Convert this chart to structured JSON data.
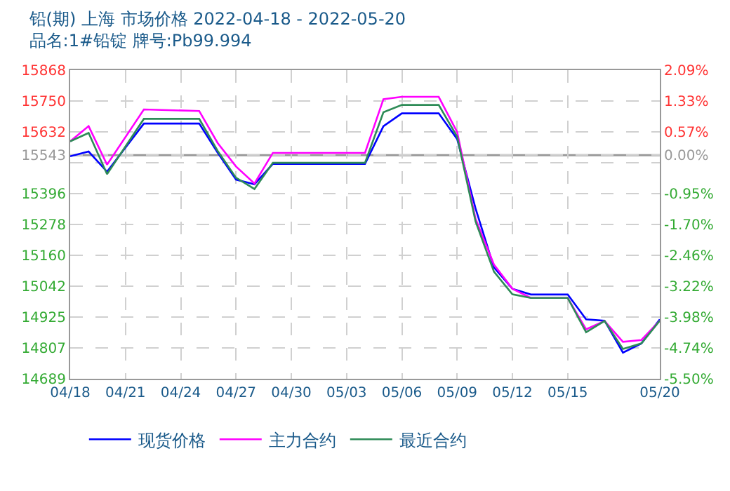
{
  "chart_data": {
    "type": "line",
    "title": "铅(期) 上海 市场价格 2022-04-18 - 2022-05-20",
    "subtitle": "品名:1#铅锭 牌号:Pb99.994",
    "x": [
      "2022-04-18",
      "2022-04-19",
      "2022-04-20",
      "2022-04-22",
      "2022-04-25",
      "2022-04-26",
      "2022-04-27",
      "2022-04-28",
      "2022-04-29",
      "2022-05-04",
      "2022-05-05",
      "2022-05-06",
      "2022-05-08",
      "2022-05-09",
      "2022-05-10",
      "2022-05-11",
      "2022-05-12",
      "2022-05-13",
      "2022-05-15",
      "2022-05-16",
      "2022-05-17",
      "2022-05-18",
      "2022-05-19",
      "2022-05-20"
    ],
    "series": [
      {
        "name": "现货价格",
        "color": "#0000ff",
        "values": [
          15539,
          15557,
          15480,
          15664,
          15664,
          15553,
          15450,
          15432,
          15510,
          15510,
          15654,
          15703,
          15703,
          15605,
          15340,
          15114,
          15033,
          15011,
          15011,
          14916,
          14911,
          14789,
          14824,
          14916
        ]
      },
      {
        "name": "主力合约",
        "color": "#ff00ff",
        "values": [
          15596,
          15654,
          15507,
          15718,
          15712,
          15590,
          15500,
          15435,
          15552,
          15552,
          15757,
          15766,
          15766,
          15632,
          15300,
          15125,
          15033,
          14998,
          14998,
          14878,
          14910,
          14830,
          14837,
          14911
        ]
      },
      {
        "name": "最近合约",
        "color": "#2e8b57",
        "values": [
          15596,
          15628,
          15471,
          15682,
          15682,
          15560,
          15457,
          15414,
          15514,
          15514,
          15707,
          15735,
          15735,
          15614,
          15290,
          15098,
          15012,
          14998,
          14998,
          14867,
          14910,
          14803,
          14824,
          14911
        ]
      }
    ],
    "xlim": [
      "2022-04-18",
      "2022-05-20"
    ],
    "xticks": [
      {
        "value": "2022-04-18",
        "label": "04/18"
      },
      {
        "value": "2022-04-21",
        "label": "04/21"
      },
      {
        "value": "2022-04-24",
        "label": "04/24"
      },
      {
        "value": "2022-04-27",
        "label": "04/27"
      },
      {
        "value": "2022-04-30",
        "label": "04/30"
      },
      {
        "value": "2022-05-03",
        "label": "05/03"
      },
      {
        "value": "2022-05-06",
        "label": "05/06"
      },
      {
        "value": "2022-05-09",
        "label": "05/09"
      },
      {
        "value": "2022-05-12",
        "label": "05/12"
      },
      {
        "value": "2022-05-15",
        "label": "05/15"
      },
      {
        "value": "2022-05-20",
        "label": "05/20"
      }
    ],
    "ylim": [
      14689,
      15868
    ],
    "yticks": [
      15868,
      15750,
      15632,
      15543,
      {
        "value": 15514,
        "label": null
      },
      15396,
      15278,
      15160,
      15042,
      14925,
      14807,
      14689
    ],
    "y2lim": [
      -5.5,
      2.09
    ],
    "y2ticks": [
      {
        "value": 2.09,
        "label": "2.09%"
      },
      {
        "value": 1.33,
        "label": "1.33%"
      },
      {
        "value": 0.57,
        "label": "0.57%"
      },
      {
        "value": 0.0,
        "label": "0.00%"
      },
      {
        "value": -0.95,
        "label": "-0.95%"
      },
      {
        "value": -1.7,
        "label": "-1.70%"
      },
      {
        "value": -2.46,
        "label": "-2.46%"
      },
      {
        "value": -3.22,
        "label": "-3.22%"
      },
      {
        "value": -3.98,
        "label": "-3.98%"
      },
      {
        "value": -4.74,
        "label": "-4.74%"
      },
      {
        "value": -5.5,
        "label": "-5.50%"
      }
    ],
    "ref_lines": [
      {
        "axis": "y",
        "value": 15543,
        "label": null,
        "color": "#999999",
        "line_style": "solid"
      }
    ],
    "grid": true,
    "legend": "bottom",
    "marker": "none",
    "line_style": "solid"
  }
}
